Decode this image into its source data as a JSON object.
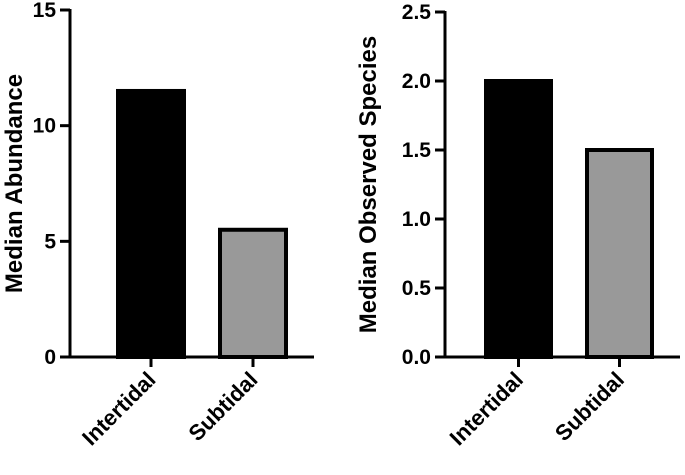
{
  "chart_data": [
    {
      "type": "bar",
      "ylabel": "Median Abundance",
      "xlabel": "",
      "categories": [
        "Intertidal",
        "Subtidal"
      ],
      "values": [
        11.5,
        5.5
      ],
      "colors": [
        "#000000",
        "#999999"
      ],
      "ylim": [
        0,
        15
      ],
      "yticks": [
        0,
        5,
        10,
        15
      ],
      "ytick_labels": [
        "0",
        "5",
        "10",
        "15"
      ],
      "grid": false
    },
    {
      "type": "bar",
      "ylabel": "Median Observed Species",
      "xlabel": "",
      "categories": [
        "Intertidal",
        "Subtidal"
      ],
      "values": [
        2.0,
        1.5
      ],
      "colors": [
        "#000000",
        "#999999"
      ],
      "ylim": [
        0,
        2.5
      ],
      "yticks": [
        0,
        0.5,
        1.0,
        1.5,
        2.0,
        2.5
      ],
      "ytick_labels": [
        "0.0",
        "0.5",
        "1.0",
        "1.5",
        "2.0",
        "2.5"
      ],
      "grid": false
    }
  ]
}
